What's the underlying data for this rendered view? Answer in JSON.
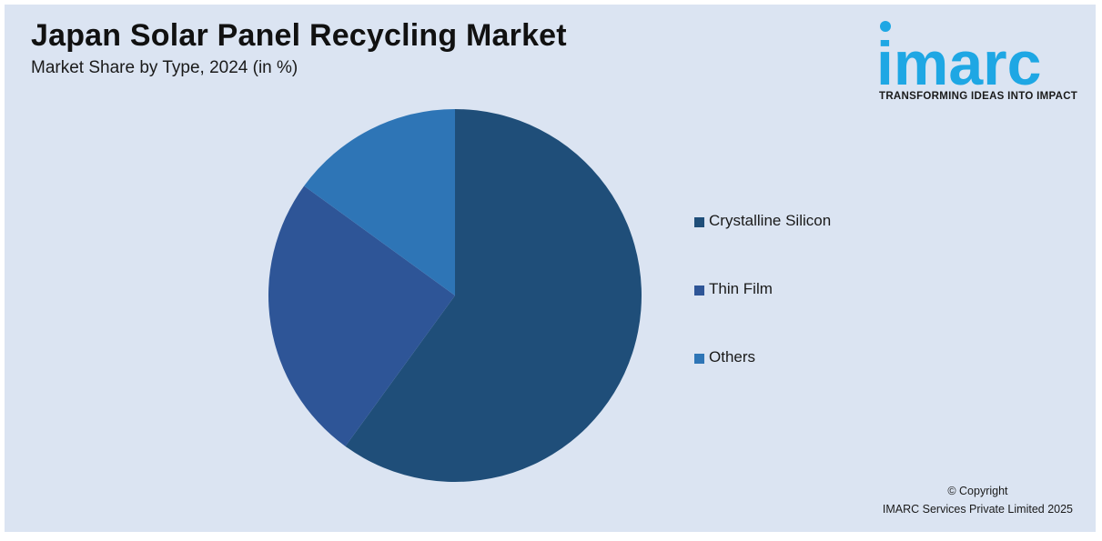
{
  "header": {
    "title": "Japan Solar Panel Recycling Market",
    "subtitle": "Market Share by Type, 2024 (in %)"
  },
  "logo": {
    "wordmark": "imarc",
    "tagline": "TRANSFORMING IDEAS INTO IMPACT",
    "color": "#1ea7e4"
  },
  "chart_data": {
    "type": "pie",
    "title": "Japan Solar Panel Recycling Market",
    "subtitle": "Market Share by Type, 2024 (in %)",
    "slices": [
      {
        "label": "Crystalline Silicon",
        "value": 60,
        "color": "#1f4e79"
      },
      {
        "label": "Thin Film",
        "value": 25,
        "color": "#2e5597"
      },
      {
        "label": "Others",
        "value": 15,
        "color": "#2e75b6"
      }
    ],
    "start_angle_deg": 0,
    "direction": "clockwise",
    "legend_position": "right"
  },
  "footer": {
    "copyright_line1": "© Copyright",
    "copyright_line2": "IMARC Services Private Limited 2025"
  }
}
